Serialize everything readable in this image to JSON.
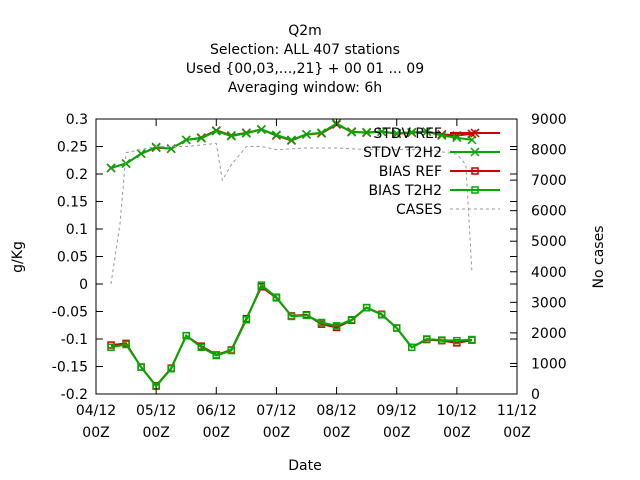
{
  "chart_data": {
    "type": "line",
    "title_lines": [
      "Q2m",
      "Selection: ALL    407 stations",
      "Used {00,03,...,21} + 00 01 ... 09",
      "Averaging window:  6h"
    ],
    "xlabel": "Date",
    "ylabel": "g/Kg",
    "y2label": "No cases",
    "x_ticks": [
      "04/12|00Z",
      "05/12|00Z",
      "06/12|00Z",
      "07/12|00Z",
      "08/12|00Z",
      "09/12|00Z",
      "10/12|00Z",
      "11/12|00Z"
    ],
    "ylim": [
      -0.2,
      0.3
    ],
    "y_ticks": [
      "-0.2",
      "-0.15",
      "-0.1",
      "-0.05",
      "0",
      "0.05",
      "0.1",
      "0.15",
      "0.2",
      "0.25",
      "0.3"
    ],
    "y2lim": [
      0,
      9000
    ],
    "y2_ticks": [
      "0",
      "1000",
      "2000",
      "3000",
      "4000",
      "5000",
      "6000",
      "7000",
      "8000",
      "9000"
    ],
    "grid": false,
    "legend_position": "top-right",
    "series": [
      {
        "name": "STDV REF",
        "axis": "left",
        "marker": "x",
        "color": "#cc0000",
        "x": [
          0.25,
          0.5,
          0.75,
          1,
          1.25,
          1.5,
          1.75,
          2,
          2.25,
          2.5,
          2.75,
          3,
          3.25,
          3.5,
          3.75,
          4,
          4.25,
          4.5,
          4.75,
          5,
          5.25,
          5.5,
          5.75,
          6,
          6.25
        ],
        "y": [
          0.211,
          0.219,
          0.237,
          0.248,
          0.246,
          0.262,
          0.266,
          0.279,
          0.27,
          0.275,
          0.281,
          0.27,
          0.261,
          0.272,
          0.274,
          0.29,
          0.277,
          0.275,
          0.277,
          0.273,
          0.275,
          0.277,
          0.272,
          0.27,
          0.273
        ]
      },
      {
        "name": "STDV T2H2",
        "axis": "left",
        "marker": "x",
        "color": "#00aa00",
        "x": [
          0.25,
          0.5,
          0.75,
          1,
          1.25,
          1.5,
          1.75,
          2,
          2.25,
          2.5,
          2.75,
          3,
          3.25,
          3.5,
          3.75,
          4,
          4.25,
          4.5,
          4.75,
          5,
          5.25,
          5.5,
          5.75,
          6,
          6.25
        ],
        "y": [
          0.211,
          0.219,
          0.237,
          0.249,
          0.246,
          0.262,
          0.265,
          0.278,
          0.269,
          0.274,
          0.281,
          0.271,
          0.262,
          0.272,
          0.275,
          0.292,
          0.276,
          0.276,
          0.277,
          0.274,
          0.276,
          0.277,
          0.27,
          0.266,
          0.262
        ]
      },
      {
        "name": "BIAS REF",
        "axis": "left",
        "marker": "square",
        "color": "#cc0000",
        "x": [
          0.25,
          0.5,
          0.75,
          1,
          1.25,
          1.5,
          1.75,
          2,
          2.25,
          2.5,
          2.75,
          3,
          3.25,
          3.5,
          3.75,
          4,
          4.25,
          4.5,
          4.75,
          5,
          5.25,
          5.5,
          5.75,
          6,
          6.25
        ],
        "y": [
          -0.111,
          -0.108,
          -0.151,
          -0.185,
          -0.153,
          -0.094,
          -0.113,
          -0.129,
          -0.12,
          -0.063,
          -0.005,
          -0.025,
          -0.058,
          -0.056,
          -0.073,
          -0.079,
          -0.066,
          -0.043,
          -0.055,
          -0.08,
          -0.115,
          -0.101,
          -0.103,
          -0.107,
          -0.102
        ]
      },
      {
        "name": "BIAS T2H2",
        "axis": "left",
        "marker": "square",
        "color": "#00aa00",
        "x": [
          0.25,
          0.5,
          0.75,
          1,
          1.25,
          1.5,
          1.75,
          2,
          2.25,
          2.5,
          2.75,
          3,
          3.25,
          3.5,
          3.75,
          4,
          4.25,
          4.5,
          4.75,
          5,
          5.25,
          5.5,
          5.75,
          6,
          6.25
        ],
        "y": [
          -0.115,
          -0.11,
          -0.151,
          -0.186,
          -0.154,
          -0.094,
          -0.115,
          -0.13,
          -0.121,
          -0.065,
          -0.002,
          -0.024,
          -0.059,
          -0.057,
          -0.07,
          -0.076,
          -0.065,
          -0.043,
          -0.056,
          -0.08,
          -0.115,
          -0.1,
          -0.102,
          -0.103,
          -0.101
        ]
      },
      {
        "name": "CASES",
        "axis": "right",
        "marker": "none",
        "color": "#999999",
        "x": [
          0.25,
          0.4,
          0.5,
          0.75,
          1,
          1.5,
          1.75,
          2,
          2.1,
          2.25,
          2.5,
          2.75,
          3,
          3.5,
          4,
          4.5,
          5,
          5.5,
          6,
          6.15,
          6.25
        ],
        "y": [
          3600,
          5600,
          7900,
          8000,
          8100,
          8100,
          8150,
          8200,
          7000,
          7500,
          8100,
          8100,
          8000,
          8050,
          8050,
          8000,
          8000,
          8000,
          7850,
          7500,
          4000
        ]
      }
    ]
  }
}
